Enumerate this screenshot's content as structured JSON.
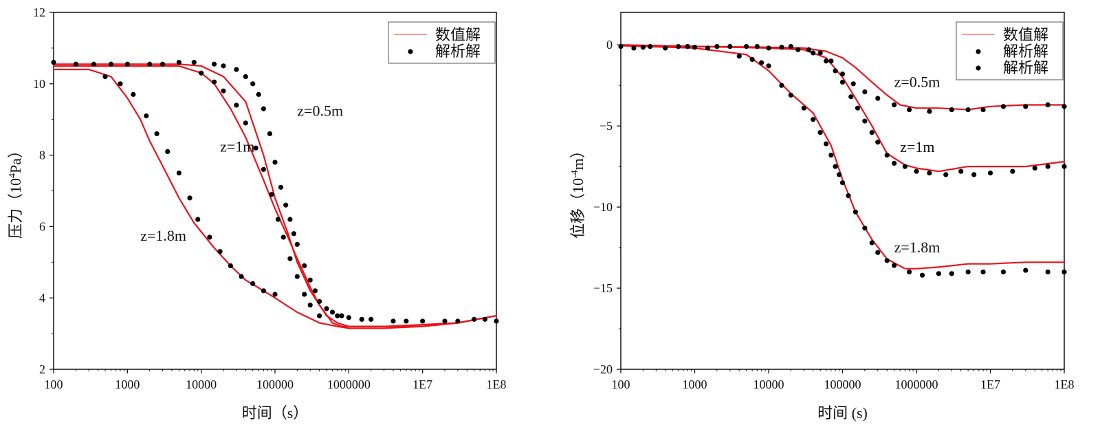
{
  "chart_data": [
    {
      "type": "line",
      "xscale": "log",
      "xlim": [
        100,
        100000000
      ],
      "ylim": [
        2,
        12
      ],
      "xticks": [
        100,
        1000,
        10000,
        100000,
        1000000,
        10000000,
        100000000
      ],
      "xtick_labels": [
        "100",
        "1000",
        "10000",
        "100000",
        "1000000",
        "1E7",
        "1E8"
      ],
      "yticks": [
        2,
        4,
        6,
        8,
        10,
        12
      ],
      "ytick_labels": [
        "2",
        "4",
        "6",
        "8",
        "10",
        "12"
      ],
      "xlabel": "时间（s）",
      "ylabel_main": "压力（10",
      "ylabel_sup": "4",
      "ylabel_tail": "Pa）",
      "legend": {
        "position": "top-right",
        "entries": [
          "数值解",
          "解析解"
        ]
      },
      "series": [
        {
          "name": "z=0.5m",
          "numerical": {
            "x": [
              100,
              1000,
              5000,
              10000,
              20000,
              40000,
              70000,
              100000,
              150000,
              200000,
              300000,
              500000,
              700000,
              1000000,
              3000000,
              10000000,
              30000000,
              100000000
            ],
            "y": [
              10.55,
              10.55,
              10.55,
              10.5,
              10.2,
              9.5,
              8.0,
              6.8,
              5.8,
              5.0,
              4.2,
              3.5,
              3.3,
              3.2,
              3.2,
              3.2,
              3.3,
              3.5
            ]
          },
          "analytical": {
            "x": [
              100,
              200,
              350,
              600,
              1000,
              2000,
              3000,
              5000,
              8000,
              15000,
              20000,
              30000,
              40000,
              50000,
              60000,
              70000,
              85000,
              100000,
              120000,
              140000,
              160000,
              180000,
              200000,
              250000,
              300000,
              350000,
              400000,
              500000,
              600000,
              700000,
              800000,
              1000000,
              1500000,
              2000000,
              4000000,
              6000000,
              10000000,
              20000000,
              30000000,
              50000000,
              70000000,
              100000000
            ],
            "y": [
              10.6,
              10.55,
              10.55,
              10.55,
              10.55,
              10.55,
              10.55,
              10.6,
              10.6,
              10.55,
              10.5,
              10.4,
              10.2,
              10.0,
              9.7,
              9.3,
              8.6,
              7.8,
              7.1,
              6.6,
              6.2,
              5.8,
              5.5,
              4.9,
              4.5,
              4.2,
              3.9,
              3.7,
              3.6,
              3.5,
              3.5,
              3.45,
              3.4,
              3.4,
              3.35,
              3.35,
              3.35,
              3.35,
              3.35,
              3.4,
              3.4,
              3.35
            ]
          }
        },
        {
          "name": "z=1m",
          "numerical": {
            "x": [
              100,
              1000,
              5000,
              10000,
              15000,
              25000,
              40000,
              70000,
              100000,
              150000,
              200000,
              300000,
              400000,
              600000,
              800000,
              1000000,
              3000000,
              10000000,
              30000000,
              100000000
            ],
            "y": [
              10.5,
              10.5,
              10.5,
              10.3,
              10.0,
              9.3,
              8.5,
              7.3,
              6.5,
              5.7,
              5.1,
              4.3,
              3.8,
              3.3,
              3.2,
              3.2,
              3.2,
              3.25,
              3.3,
              3.5
            ]
          },
          "analytical": {
            "x": [
              10000,
              15000,
              20000,
              30000,
              40000,
              55000,
              70000,
              90000,
              110000,
              130000,
              160000,
              200000,
              250000,
              300000,
              400000
            ],
            "y": [
              10.3,
              10.05,
              9.8,
              9.4,
              8.9,
              8.2,
              7.6,
              6.9,
              6.2,
              5.7,
              5.1,
              4.6,
              4.1,
              3.8,
              3.5
            ]
          }
        },
        {
          "name": "z=1.8m",
          "numerical": {
            "x": [
              100,
              300,
              600,
              1000,
              1500,
              2000,
              3000,
              5000,
              8000,
              15000,
              25000,
              40000,
              70000,
              100000,
              200000,
              400000,
              700000,
              1000000,
              3000000,
              10000000,
              30000000,
              100000000
            ],
            "y": [
              10.4,
              10.4,
              10.2,
              9.6,
              9.0,
              8.4,
              7.7,
              6.8,
              6.1,
              5.4,
              4.9,
              4.5,
              4.2,
              4.0,
              3.6,
              3.3,
              3.2,
              3.15,
              3.15,
              3.2,
              3.3,
              3.5
            ]
          },
          "analytical": {
            "x": [
              500,
              800,
              1200,
              1800,
              2500,
              3500,
              5000,
              7000,
              9000,
              13000,
              18000,
              25000,
              35000,
              50000,
              70000,
              100000
            ],
            "y": [
              10.2,
              10.0,
              9.7,
              9.1,
              8.6,
              8.1,
              7.5,
              6.8,
              6.2,
              5.7,
              5.3,
              4.9,
              4.6,
              4.4,
              4.2,
              4.1
            ]
          }
        }
      ],
      "annotations": [
        {
          "text": "z=0.5m",
          "x": 200000,
          "y": 9.1
        },
        {
          "text": "z=1m",
          "x": 18000,
          "y": 8.1
        },
        {
          "text": "z=1.8m",
          "x": 1500,
          "y": 5.6
        }
      ]
    },
    {
      "type": "line",
      "xscale": "log",
      "xlim": [
        100,
        100000000
      ],
      "ylim": [
        -20,
        2
      ],
      "xticks": [
        100,
        1000,
        10000,
        100000,
        1000000,
        10000000,
        100000000
      ],
      "xtick_labels": [
        "100",
        "1000",
        "10000",
        "100000",
        "1000000",
        "1E7",
        "1E8"
      ],
      "yticks": [
        0,
        -5,
        -10,
        -15,
        -20
      ],
      "ytick_labels": [
        "0",
        "−5",
        "−10",
        "−15",
        "−20"
      ],
      "xlabel": "时间 (s)",
      "ylabel_main": "位移（10",
      "ylabel_sup": "-4",
      "ylabel_tail": "m）",
      "legend": {
        "position": "top-right",
        "entries": [
          "数值解",
          "解析解",
          "解析解"
        ]
      },
      "series": [
        {
          "name": "z=0.5m",
          "numerical": {
            "x": [
              100,
              1000,
              10000,
              30000,
              60000,
              100000,
              150000,
              250000,
              400000,
              600000,
              1000000,
              2000000,
              5000000,
              10000000,
              30000000,
              100000000
            ],
            "y": [
              0,
              -0.1,
              -0.15,
              -0.2,
              -0.4,
              -0.8,
              -1.4,
              -2.3,
              -3.1,
              -3.7,
              -3.9,
              -3.9,
              -4.0,
              -3.8,
              -3.7,
              -3.7
            ]
          },
          "analytical": {
            "x": [
              100,
              150,
              200,
              250,
              400,
              600,
              800,
              1000,
              1500,
              2000,
              3000,
              5000,
              7000,
              10000,
              15000,
              20000,
              25000,
              35000,
              50000,
              70000,
              100000,
              140000,
              200000,
              300000,
              500000,
              800000,
              1500000,
              3000000,
              5000000,
              8000000,
              15000000,
              30000000,
              60000000,
              100000000
            ],
            "y": [
              -0.1,
              -0.2,
              -0.15,
              -0.1,
              -0.2,
              -0.1,
              -0.1,
              -0.15,
              -0.2,
              -0.1,
              -0.1,
              -0.1,
              -0.1,
              -0.2,
              -0.15,
              -0.1,
              -0.3,
              -0.3,
              -0.5,
              -1.0,
              -1.8,
              -2.4,
              -2.9,
              -3.3,
              -3.7,
              -4.0,
              -4.1,
              -4.0,
              -4.0,
              -4.0,
              -3.8,
              -3.8,
              -3.7,
              -3.8
            ]
          }
        },
        {
          "name": "z=1m",
          "numerical": {
            "x": [
              100,
              1000,
              10000,
              30000,
              60000,
              100000,
              150000,
              250000,
              400000,
              700000,
              1000000,
              2000000,
              5000000,
              10000000,
              30000000,
              100000000
            ],
            "y": [
              -0.05,
              -0.1,
              -0.2,
              -0.3,
              -0.8,
              -2.0,
              -3.3,
              -5.0,
              -6.7,
              -7.4,
              -7.6,
              -7.8,
              -7.5,
              -7.5,
              -7.5,
              -7.2
            ]
          },
          "analytical": {
            "x": [
              40000,
              60000,
              80000,
              100000,
              130000,
              160000,
              200000,
              250000,
              300000,
              400000,
              500000,
              700000,
              1000000,
              1500000,
              2500000,
              4000000,
              6000000,
              10000000,
              20000000,
              40000000,
              60000000,
              100000000
            ],
            "y": [
              -0.5,
              -1.0,
              -1.6,
              -2.3,
              -3.2,
              -3.9,
              -4.7,
              -5.4,
              -6.0,
              -6.8,
              -7.3,
              -7.5,
              -7.8,
              -7.9,
              -8.0,
              -7.8,
              -8.0,
              -7.9,
              -7.8,
              -7.6,
              -7.5,
              -7.5
            ]
          }
        },
        {
          "name": "z=1.8m",
          "numerical": {
            "x": [
              100,
              1000,
              5000,
              10000,
              20000,
              40000,
              70000,
              100000,
              150000,
              250000,
              400000,
              700000,
              1000000,
              2000000,
              5000000,
              10000000,
              30000000,
              100000000
            ],
            "y": [
              -0.05,
              -0.2,
              -0.6,
              -1.6,
              -3.0,
              -4.2,
              -6.2,
              -8.3,
              -10.3,
              -12.0,
              -13.2,
              -13.8,
              -13.8,
              -13.7,
              -13.5,
              -13.5,
              -13.4,
              -13.4
            ]
          },
          "analytical": {
            "x": [
              4000,
              6000,
              8000,
              10000,
              15000,
              20000,
              30000,
              40000,
              50000,
              60000,
              70000,
              80000,
              90000,
              100000,
              120000,
              150000,
              200000,
              250000,
              300000,
              400000,
              500000,
              800000,
              1200000,
              2000000,
              3000000,
              5000000,
              8000000,
              15000000,
              30000000,
              60000000,
              100000000
            ],
            "y": [
              -0.7,
              -0.9,
              -1.1,
              -1.3,
              -2.5,
              -3.1,
              -3.9,
              -4.6,
              -5.4,
              -6.1,
              -6.8,
              -7.5,
              -8.0,
              -8.5,
              -9.3,
              -10.3,
              -11.3,
              -12.2,
              -12.8,
              -13.3,
              -13.6,
              -14.0,
              -14.2,
              -14.1,
              -14.1,
              -14.0,
              -14.0,
              -14.0,
              -13.9,
              -14.0,
              -14.0
            ]
          }
        }
      ],
      "annotations": [
        {
          "text": "z=0.5m",
          "x": 500000,
          "y": -2.6
        },
        {
          "text": "z=1m",
          "x": 600000,
          "y": -6.6
        },
        {
          "text": "z=1.8m",
          "x": 500000,
          "y": -12.8
        }
      ]
    }
  ]
}
